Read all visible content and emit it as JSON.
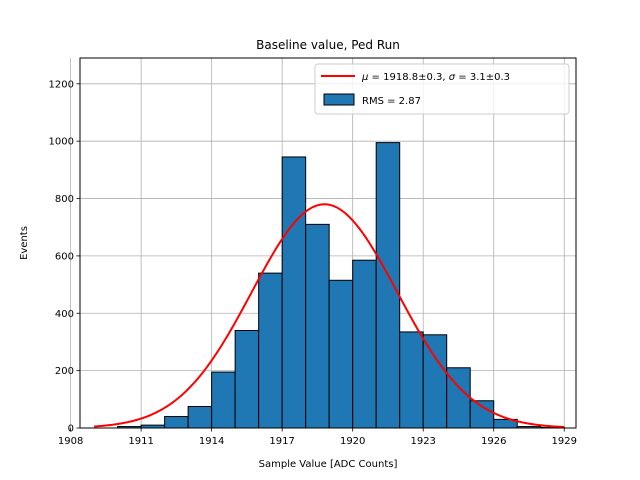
{
  "chart_data": {
    "type": "bar",
    "title": "Baseline value, Ped Run",
    "xlabel": "Sample Value [ADC Counts]",
    "ylabel": "Events",
    "xlim": [
      1908.4,
      1929.5
    ],
    "ylim": [
      0,
      1290
    ],
    "grid": true,
    "legend_position": "top-right",
    "xticks": [
      1908,
      1911,
      1914,
      1917,
      1920,
      1923,
      1926,
      1929
    ],
    "yticks": [
      0,
      200,
      400,
      600,
      800,
      1000,
      1200
    ],
    "bin_edges": [
      1909.0,
      1910.0,
      1911.0,
      1912.0,
      1913.0,
      1914.0,
      1915.0,
      1916.0,
      1917.0,
      1918.0,
      1919.0,
      1920.0,
      1921.0,
      1922.0,
      1923.0,
      1924.0,
      1925.0,
      1926.0,
      1927.0,
      1928.0,
      1929.0
    ],
    "counts": [
      0,
      5,
      10,
      40,
      75,
      195,
      340,
      540,
      945,
      710,
      515,
      585,
      995,
      335,
      325,
      210,
      95,
      30,
      5,
      2
    ],
    "fit": {
      "type": "gaussian",
      "mu": 1918.8,
      "sigma": 3.1,
      "amplitude": 780,
      "x_range": [
        1909.0,
        1929.0
      ]
    },
    "legend": [
      {
        "kind": "line",
        "label": "$\\mu = 1918.8 \\pm 0.3$, $\\sigma = 3.1 \\pm 0.3$",
        "color": "#ff0000"
      },
      {
        "kind": "bar",
        "label": "RMS = 2.87",
        "color": "#1f77b4"
      }
    ],
    "legend_display": {
      "mu_symbol": "μ",
      "mu_text": " = 1918.8±0.3, ",
      "sigma_symbol": "σ",
      "sigma_text": " = 3.1±0.3",
      "rms_text": "RMS = 2.87"
    }
  }
}
